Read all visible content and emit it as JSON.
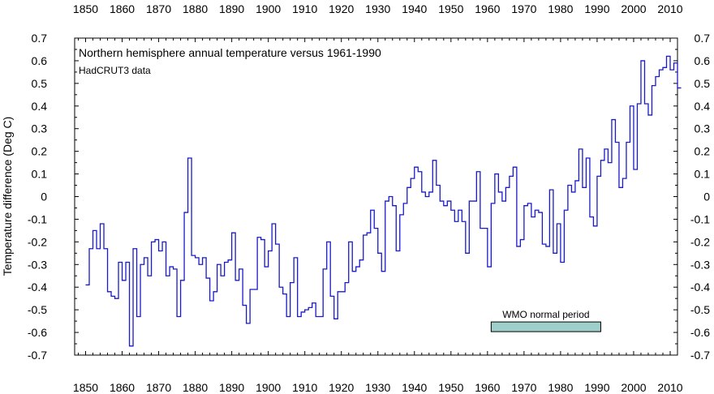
{
  "chart_data": {
    "type": "line",
    "step": true,
    "title": "Northern hemisphere annual temperature versus 1961-1990",
    "subtitle": "HadCRUT3 data",
    "ylabel": "Temperature difference (Deg C)",
    "xlabel": "",
    "xlim": [
      1847,
      2012
    ],
    "ylim": [
      -0.7,
      0.7
    ],
    "xticks": [
      1850,
      1860,
      1870,
      1880,
      1890,
      1900,
      1910,
      1920,
      1930,
      1940,
      1950,
      1960,
      1970,
      1980,
      1990,
      2000,
      2010
    ],
    "yticks": [
      -0.7,
      -0.6,
      -0.5,
      -0.4,
      -0.3,
      -0.2,
      -0.1,
      0,
      0.1,
      0.2,
      0.3,
      0.4,
      0.5,
      0.6,
      0.7
    ],
    "ytick_labels": [
      "-0.7",
      "-0.6",
      "-0.5",
      "-0.4",
      "-0.3",
      "-0.2",
      "-0.1",
      "0",
      "0.1",
      "0.2",
      "0.3",
      "0.4",
      "0.5",
      "0.6",
      "0.7"
    ],
    "grid": false,
    "series_color": "#1a1ac8",
    "series": [
      {
        "x_start": 1850,
        "values": [
          -0.39,
          -0.23,
          -0.15,
          -0.23,
          -0.12,
          -0.23,
          -0.42,
          -0.44,
          -0.45,
          -0.29,
          -0.37,
          -0.29,
          -0.66,
          -0.23,
          -0.53,
          -0.3,
          -0.27,
          -0.35,
          -0.2,
          -0.19,
          -0.24,
          -0.2,
          -0.35,
          -0.31,
          -0.32,
          -0.53,
          -0.37,
          -0.07,
          0.17,
          -0.26,
          -0.27,
          -0.3,
          -0.27,
          -0.36,
          -0.46,
          -0.42,
          -0.3,
          -0.35,
          -0.29,
          -0.28,
          -0.16,
          -0.37,
          -0.32,
          -0.48,
          -0.56,
          -0.41,
          -0.41,
          -0.18,
          -0.19,
          -0.31,
          -0.24,
          -0.12,
          -0.21,
          -0.4,
          -0.43,
          -0.53,
          -0.38,
          -0.27,
          -0.53,
          -0.51,
          -0.5,
          -0.49,
          -0.47,
          -0.53,
          -0.53,
          -0.32,
          -0.2,
          -0.44,
          -0.54,
          -0.42,
          -0.42,
          -0.38,
          -0.2,
          -0.33,
          -0.31,
          -0.28,
          -0.17,
          -0.16,
          -0.06,
          -0.14,
          -0.25,
          -0.33,
          -0.02,
          0.0,
          -0.04,
          -0.24,
          -0.08,
          -0.03,
          0.04,
          0.08,
          0.13,
          0.11,
          0.02,
          0.0,
          0.02,
          0.16,
          0.05,
          -0.02,
          -0.04,
          -0.02,
          -0.06,
          -0.11,
          -0.06,
          -0.11,
          -0.25,
          -0.02,
          -0.02,
          0.11,
          -0.14,
          -0.14,
          -0.31,
          -0.03,
          0.1,
          0.02,
          -0.02,
          0.04,
          0.09,
          0.13,
          -0.22,
          -0.19,
          -0.04,
          -0.03,
          -0.09,
          -0.06,
          -0.07,
          -0.21,
          -0.22,
          0.03,
          -0.25,
          -0.12,
          -0.29,
          -0.06,
          0.05,
          0.02,
          0.07,
          0.21,
          0.04,
          0.17,
          -0.09,
          -0.13,
          0.09,
          0.16,
          0.21,
          0.15,
          0.34,
          0.24,
          0.04,
          0.08,
          0.24,
          0.4,
          0.12,
          0.41,
          0.6,
          0.41,
          0.36,
          0.49,
          0.53,
          0.56,
          0.57,
          0.62,
          0.56,
          0.59,
          0.48
        ]
      }
    ],
    "annotation": {
      "label": "WMO normal period",
      "x_start": 1961,
      "x_end": 1991,
      "y_center": -0.575,
      "fill": "#9fcfcb"
    }
  }
}
